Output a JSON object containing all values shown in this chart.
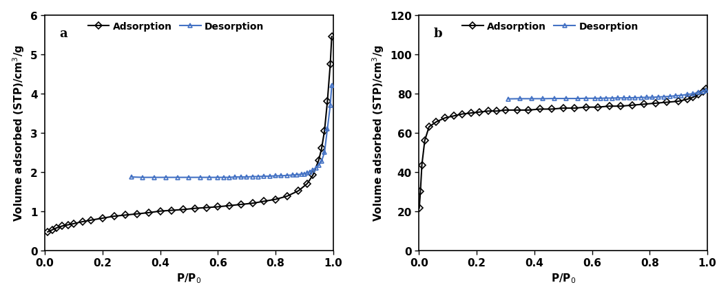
{
  "panel_a": {
    "label": "a",
    "adsorption_x": [
      0.01,
      0.025,
      0.04,
      0.06,
      0.08,
      0.1,
      0.13,
      0.16,
      0.2,
      0.24,
      0.28,
      0.32,
      0.36,
      0.4,
      0.44,
      0.48,
      0.52,
      0.56,
      0.6,
      0.64,
      0.68,
      0.72,
      0.76,
      0.8,
      0.84,
      0.88,
      0.91,
      0.93,
      0.95,
      0.96,
      0.97,
      0.98,
      0.99,
      0.995
    ],
    "adsorption_y": [
      0.47,
      0.52,
      0.57,
      0.62,
      0.65,
      0.68,
      0.73,
      0.77,
      0.82,
      0.87,
      0.9,
      0.93,
      0.96,
      1.0,
      1.02,
      1.04,
      1.07,
      1.09,
      1.11,
      1.14,
      1.17,
      1.2,
      1.25,
      1.3,
      1.38,
      1.52,
      1.7,
      1.92,
      2.3,
      2.6,
      3.05,
      3.8,
      4.75,
      5.45
    ],
    "desorption_x": [
      0.995,
      0.99,
      0.98,
      0.97,
      0.96,
      0.95,
      0.94,
      0.93,
      0.92,
      0.91,
      0.9,
      0.89,
      0.875,
      0.86,
      0.84,
      0.82,
      0.8,
      0.78,
      0.76,
      0.74,
      0.72,
      0.7,
      0.68,
      0.66,
      0.64,
      0.62,
      0.6,
      0.57,
      0.54,
      0.5,
      0.46,
      0.42,
      0.38,
      0.34,
      0.3
    ],
    "desorption_y": [
      4.2,
      3.7,
      3.1,
      2.5,
      2.28,
      2.17,
      2.1,
      2.05,
      2.0,
      1.97,
      1.95,
      1.94,
      1.93,
      1.92,
      1.91,
      1.9,
      1.9,
      1.89,
      1.89,
      1.88,
      1.88,
      1.87,
      1.87,
      1.87,
      1.86,
      1.86,
      1.86,
      1.86,
      1.86,
      1.86,
      1.86,
      1.86,
      1.86,
      1.86,
      1.87
    ],
    "xlim": [
      0,
      1.0
    ],
    "ylim": [
      0,
      6
    ],
    "yticks": [
      0,
      1,
      2,
      3,
      4,
      5,
      6
    ],
    "xticks": [
      0.0,
      0.2,
      0.4,
      0.6,
      0.8,
      1.0
    ],
    "xlabel": "P/P$_0$",
    "ylabel": "Volume adsorbed (STP)/cm$^3$/g"
  },
  "panel_b": {
    "label": "b",
    "adsorption_x": [
      0.001,
      0.005,
      0.01,
      0.02,
      0.035,
      0.06,
      0.09,
      0.12,
      0.15,
      0.18,
      0.21,
      0.24,
      0.27,
      0.3,
      0.34,
      0.38,
      0.42,
      0.46,
      0.5,
      0.54,
      0.58,
      0.62,
      0.66,
      0.7,
      0.74,
      0.78,
      0.82,
      0.86,
      0.9,
      0.93,
      0.95,
      0.97,
      0.985,
      0.995
    ],
    "adsorption_y": [
      21.5,
      30.0,
      43.5,
      56.0,
      63.0,
      65.5,
      67.5,
      68.5,
      69.5,
      70.0,
      70.5,
      71.0,
      71.0,
      71.5,
      71.5,
      71.5,
      72.0,
      72.0,
      72.5,
      72.5,
      73.0,
      73.0,
      73.5,
      73.5,
      74.0,
      74.5,
      75.0,
      75.5,
      76.0,
      77.0,
      78.0,
      79.5,
      81.0,
      82.5
    ],
    "desorption_x": [
      0.995,
      0.985,
      0.97,
      0.95,
      0.93,
      0.91,
      0.89,
      0.87,
      0.85,
      0.83,
      0.81,
      0.79,
      0.77,
      0.75,
      0.73,
      0.71,
      0.69,
      0.67,
      0.65,
      0.63,
      0.61,
      0.58,
      0.55,
      0.51,
      0.47,
      0.43,
      0.39,
      0.35,
      0.31
    ],
    "desorption_y": [
      81.5,
      81.0,
      80.5,
      79.8,
      79.5,
      79.0,
      78.8,
      78.5,
      78.3,
      78.2,
      78.0,
      78.0,
      77.9,
      77.8,
      77.8,
      77.7,
      77.7,
      77.6,
      77.6,
      77.5,
      77.5,
      77.5,
      77.4,
      77.4,
      77.4,
      77.3,
      77.3,
      77.3,
      77.2
    ],
    "xlim": [
      0,
      1.0
    ],
    "ylim": [
      0,
      120
    ],
    "yticks": [
      0,
      20,
      40,
      60,
      80,
      100,
      120
    ],
    "xticks": [
      0.0,
      0.2,
      0.4,
      0.6,
      0.8,
      1.0
    ],
    "xlabel": "P/P$_0$",
    "ylabel": "Volume adsorbed (STP)/cm$^3$/g"
  },
  "adsorption_color": "#000000",
  "desorption_color": "#4472C4",
  "adsorption_marker": "D",
  "desorption_marker": "^",
  "marker_size": 5,
  "line_width": 1.5,
  "font_size": 11,
  "legend_font_size": 10,
  "label_fontsize": 13
}
